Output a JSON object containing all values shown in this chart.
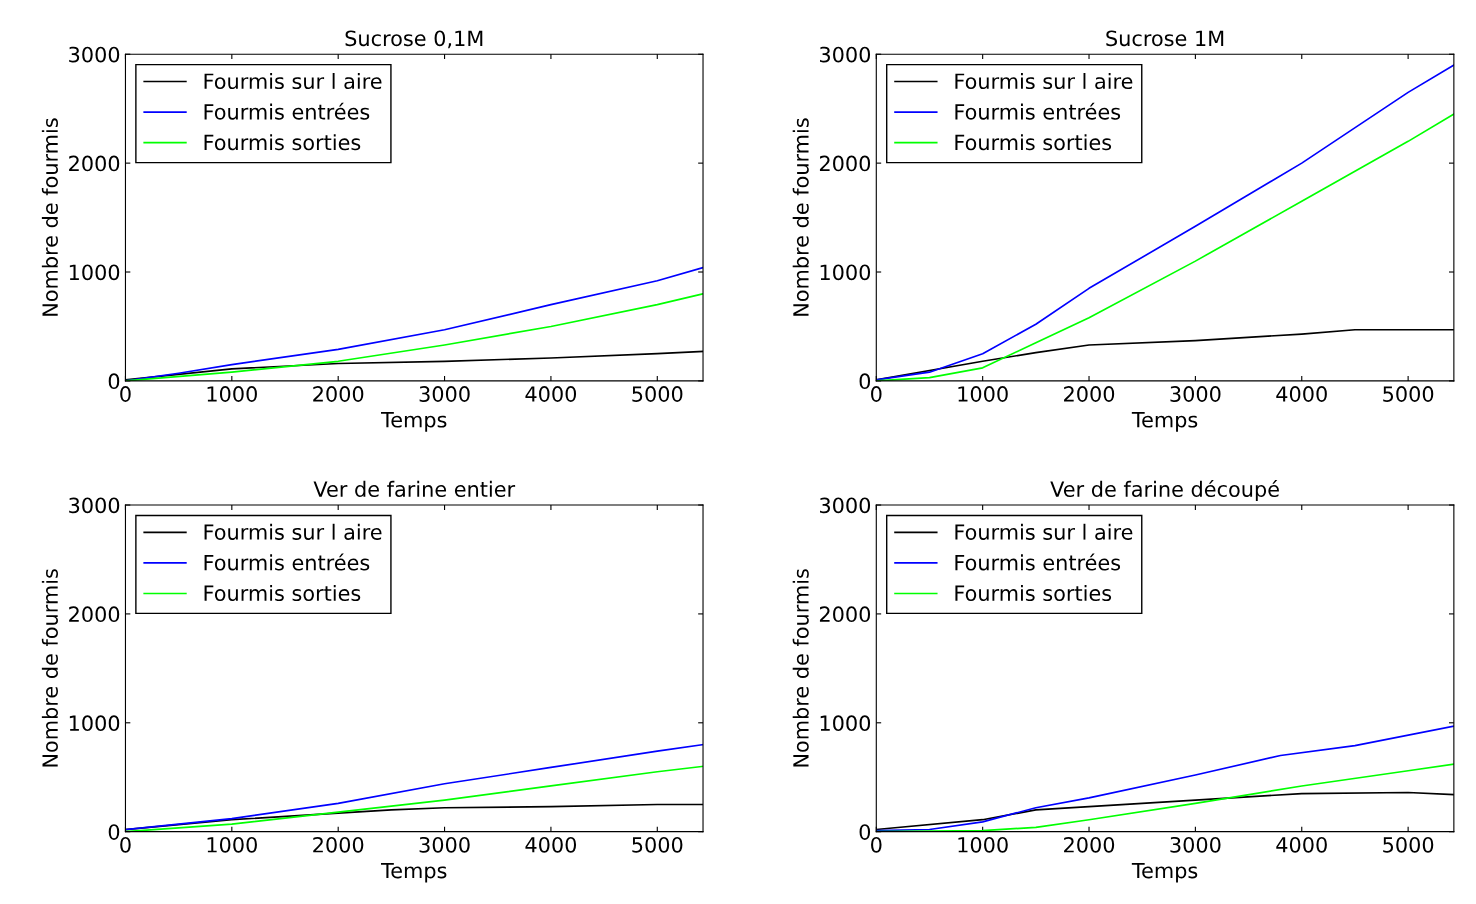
{
  "chart_data": [
    {
      "type": "line",
      "title": "Sucrose 0,1M",
      "xlabel": "Temps",
      "ylabel": "Nombre de fourmis",
      "xlim": [
        0,
        5430
      ],
      "ylim": [
        0,
        3000
      ],
      "xticks": [
        0,
        1000,
        2000,
        3000,
        4000,
        5000
      ],
      "yticks": [
        0,
        1000,
        2000,
        3000
      ],
      "legend": "top left",
      "grid": false,
      "series": [
        {
          "name": "Fourmis sur l aire",
          "color": "#000000",
          "x": [
            0,
            1000,
            2000,
            3000,
            4000,
            5000,
            5430
          ],
          "values": [
            10,
            110,
            160,
            180,
            210,
            250,
            270
          ]
        },
        {
          "name": "Fourmis entrées",
          "color": "#0000ff",
          "x": [
            0,
            500,
            1000,
            2000,
            3000,
            4000,
            5000,
            5430
          ],
          "values": [
            0,
            70,
            150,
            290,
            470,
            700,
            920,
            1040
          ]
        },
        {
          "name": "Fourmis sorties",
          "color": "#00ff00",
          "x": [
            0,
            1000,
            2000,
            3000,
            4000,
            5000,
            5430
          ],
          "values": [
            0,
            80,
            180,
            330,
            500,
            700,
            800
          ]
        }
      ]
    },
    {
      "type": "line",
      "title": "Sucrose 1M",
      "xlabel": "Temps",
      "ylabel": "Nombre de fourmis",
      "xlim": [
        0,
        5430
      ],
      "ylim": [
        0,
        3000
      ],
      "xticks": [
        0,
        1000,
        2000,
        3000,
        4000,
        5000
      ],
      "yticks": [
        0,
        1000,
        2000,
        3000
      ],
      "legend": "top left",
      "grid": false,
      "series": [
        {
          "name": "Fourmis sur l aire",
          "color": "#000000",
          "x": [
            0,
            1000,
            1500,
            2000,
            3000,
            4000,
            4500,
            5430
          ],
          "values": [
            10,
            180,
            260,
            330,
            370,
            430,
            470,
            470
          ]
        },
        {
          "name": "Fourmis entrées",
          "color": "#0000ff",
          "x": [
            0,
            500,
            1000,
            1500,
            2000,
            3000,
            4000,
            5000,
            5430
          ],
          "values": [
            10,
            80,
            250,
            520,
            850,
            1420,
            2000,
            2650,
            2900
          ]
        },
        {
          "name": "Fourmis sorties",
          "color": "#00ff00",
          "x": [
            0,
            500,
            1000,
            1500,
            2000,
            3000,
            4000,
            5000,
            5430
          ],
          "values": [
            0,
            30,
            120,
            350,
            580,
            1100,
            1650,
            2200,
            2450
          ]
        }
      ]
    },
    {
      "type": "line",
      "title": "Ver de farine entier",
      "xlabel": "Temps",
      "ylabel": "Nombre de fourmis",
      "xlim": [
        0,
        5430
      ],
      "ylim": [
        0,
        3000
      ],
      "xticks": [
        0,
        1000,
        2000,
        3000,
        4000,
        5000
      ],
      "yticks": [
        0,
        1000,
        2000,
        3000
      ],
      "legend": "top left",
      "grid": false,
      "series": [
        {
          "name": "Fourmis sur l aire",
          "color": "#000000",
          "x": [
            0,
            1000,
            2000,
            2500,
            3000,
            4000,
            5000,
            5430
          ],
          "values": [
            20,
            110,
            170,
            200,
            220,
            230,
            250,
            250
          ]
        },
        {
          "name": "Fourmis entrées",
          "color": "#0000ff",
          "x": [
            0,
            1000,
            2000,
            3000,
            4000,
            5000,
            5430
          ],
          "values": [
            20,
            120,
            260,
            440,
            590,
            740,
            800
          ]
        },
        {
          "name": "Fourmis sorties",
          "color": "#00ff00",
          "x": [
            0,
            1000,
            2000,
            3000,
            4000,
            5000,
            5430
          ],
          "values": [
            0,
            70,
            180,
            290,
            420,
            550,
            600
          ]
        }
      ]
    },
    {
      "type": "line",
      "title": "Ver de farine découpé",
      "xlabel": "Temps",
      "ylabel": "Nombre de fourmis",
      "xlim": [
        0,
        5430
      ],
      "ylim": [
        0,
        3000
      ],
      "xticks": [
        0,
        1000,
        2000,
        3000,
        4000,
        5000
      ],
      "yticks": [
        0,
        1000,
        2000,
        3000
      ],
      "legend": "top left",
      "grid": false,
      "series": [
        {
          "name": "Fourmis sur l aire",
          "color": "#000000",
          "x": [
            0,
            1000,
            1500,
            2000,
            3000,
            4000,
            5000,
            5430
          ],
          "values": [
            20,
            110,
            200,
            230,
            290,
            350,
            360,
            340
          ]
        },
        {
          "name": "Fourmis entrées",
          "color": "#0000ff",
          "x": [
            0,
            500,
            1000,
            1500,
            2000,
            3000,
            3800,
            4500,
            5430
          ],
          "values": [
            10,
            20,
            90,
            220,
            310,
            520,
            700,
            790,
            970
          ]
        },
        {
          "name": "Fourmis sorties",
          "color": "#00ff00",
          "x": [
            0,
            1000,
            1500,
            2000,
            3000,
            4000,
            5000,
            5430
          ],
          "values": [
            0,
            10,
            40,
            110,
            260,
            420,
            560,
            620
          ]
        }
      ]
    }
  ]
}
